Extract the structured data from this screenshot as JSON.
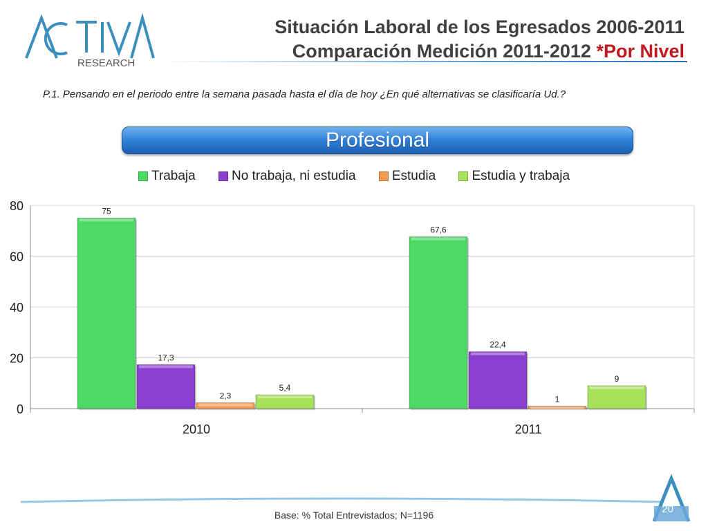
{
  "brand": {
    "logo_text_main": "ACTIVA",
    "logo_text_sub": "RESEARCH"
  },
  "header": {
    "title_line1": "Situación Laboral de los Egresados 2006-2011",
    "title_line2_main": "Comparación Medición 2011-2012 ",
    "title_line2_accent": "*Por Nivel"
  },
  "question": "P.1.  Pensando en el periodo entre la semana pasada hasta el día de hoy ¿En qué alternativas se clasificaría Ud.?",
  "banner": {
    "label": "Profesional"
  },
  "footer": {
    "base": "Base: % Total Entrevistados; N=1196",
    "page_number": "20"
  },
  "colors": {
    "accent_red": "#c0181e",
    "banner_blue": "#2f7fd6"
  },
  "chart_data": {
    "type": "bar",
    "categories": [
      "2010",
      "2011"
    ],
    "series": [
      {
        "name": "Trabaja",
        "values": [
          75,
          67.6
        ],
        "labels": [
          "75",
          "67,6"
        ],
        "color": "#4cd964"
      },
      {
        "name": "No trabaja, ni estudia",
        "values": [
          17.3,
          22.4
        ],
        "labels": [
          "17,3",
          "22,4"
        ],
        "color": "#8b3fd1"
      },
      {
        "name": "Estudia",
        "values": [
          2.3,
          1
        ],
        "labels": [
          "2,3",
          "1"
        ],
        "color": "#f49b52"
      },
      {
        "name": "Estudia y trabaja",
        "values": [
          5.4,
          9
        ],
        "labels": [
          "5,4",
          "9"
        ],
        "color": "#a6e35a"
      }
    ],
    "yticks": [
      "0",
      "20",
      "40",
      "60",
      "80"
    ],
    "ylim": [
      0,
      80
    ],
    "grid": true,
    "legend_position": "top"
  }
}
